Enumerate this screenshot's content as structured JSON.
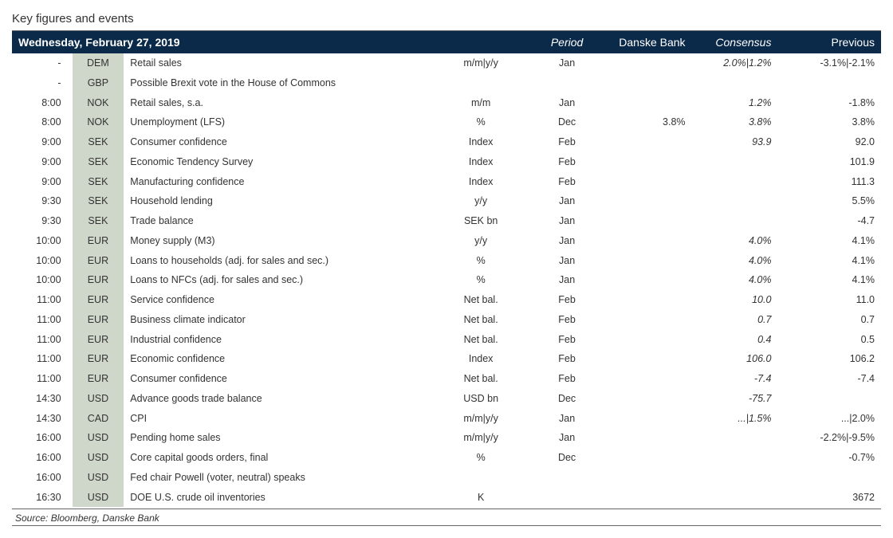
{
  "title": "Key figures and events",
  "date_header": "Wednesday, February 27, 2019",
  "columns": {
    "unit": "",
    "period": "Period",
    "danske": "Danske Bank",
    "consensus": "Consensus",
    "previous": "Previous"
  },
  "colors": {
    "header_bg": "#0b2a4a",
    "header_fg": "#ffffff",
    "ccy_bg": "#cfd7cb",
    "border": "#666666",
    "text": "#333333"
  },
  "fonts": {
    "title_size": 15,
    "body_size": 12.5,
    "cell_line_height": 1.5
  },
  "col_widths": {
    "time": 70,
    "ccy": 60,
    "event": 360,
    "unit": 110,
    "period": 90,
    "db": 100,
    "consensus": 100,
    "prev": 120
  },
  "rows": [
    {
      "time": "-",
      "ccy": "DEM",
      "event": "Retail sales",
      "unit": "m/m|y/y",
      "period": "Jan",
      "db": "",
      "cons": "2.0%|1.2%",
      "prev": "-3.1%|-2.1%"
    },
    {
      "time": "-",
      "ccy": "GBP",
      "event": "Possible Brexit vote in the House of Commons",
      "unit": "",
      "period": "",
      "db": "",
      "cons": "",
      "prev": ""
    },
    {
      "time": "8:00",
      "ccy": "NOK",
      "event": "Retail sales, s.a.",
      "unit": "m/m",
      "period": "Jan",
      "db": "",
      "cons": "1.2%",
      "prev": "-1.8%"
    },
    {
      "time": "8:00",
      "ccy": "NOK",
      "event": "Unemployment (LFS)",
      "unit": "%",
      "period": "Dec",
      "db": "3.8%",
      "cons": "3.8%",
      "prev": "3.8%"
    },
    {
      "time": "9:00",
      "ccy": "SEK",
      "event": "Consumer confidence",
      "unit": "Index",
      "period": "Feb",
      "db": "",
      "cons": "93.9",
      "prev": "92.0"
    },
    {
      "time": "9:00",
      "ccy": "SEK",
      "event": "Economic Tendency Survey",
      "unit": "Index",
      "period": "Feb",
      "db": "",
      "cons": "",
      "prev": "101.9"
    },
    {
      "time": "9:00",
      "ccy": "SEK",
      "event": "Manufacturing confidence",
      "unit": "Index",
      "period": "Feb",
      "db": "",
      "cons": "",
      "prev": "111.3"
    },
    {
      "time": "9:30",
      "ccy": "SEK",
      "event": "Household lending",
      "unit": "y/y",
      "period": "Jan",
      "db": "",
      "cons": "",
      "prev": "5.5%"
    },
    {
      "time": "9:30",
      "ccy": "SEK",
      "event": "Trade balance",
      "unit": "SEK bn",
      "period": "Jan",
      "db": "",
      "cons": "",
      "prev": "-4.7"
    },
    {
      "time": "10:00",
      "ccy": "EUR",
      "event": "Money supply (M3)",
      "unit": "y/y",
      "period": "Jan",
      "db": "",
      "cons": "4.0%",
      "prev": "4.1%"
    },
    {
      "time": "10:00",
      "ccy": "EUR",
      "event": "Loans to households (adj. for sales and sec.)",
      "unit": "%",
      "period": "Jan",
      "db": "",
      "cons": "4.0%",
      "prev": "4.1%"
    },
    {
      "time": "10:00",
      "ccy": "EUR",
      "event": "Loans to NFCs (adj. for sales and sec.)",
      "unit": "%",
      "period": "Jan",
      "db": "",
      "cons": "4.0%",
      "prev": "4.1%"
    },
    {
      "time": "11:00",
      "ccy": "EUR",
      "event": "Service confidence",
      "unit": "Net bal.",
      "period": "Feb",
      "db": "",
      "cons": "10.0",
      "prev": "11.0"
    },
    {
      "time": "11:00",
      "ccy": "EUR",
      "event": "Business climate indicator",
      "unit": "Net bal.",
      "period": "Feb",
      "db": "",
      "cons": "0.7",
      "prev": "0.7"
    },
    {
      "time": "11:00",
      "ccy": "EUR",
      "event": "Industrial confidence",
      "unit": "Net bal.",
      "period": "Feb",
      "db": "",
      "cons": "0.4",
      "prev": "0.5"
    },
    {
      "time": "11:00",
      "ccy": "EUR",
      "event": "Economic confidence",
      "unit": "Index",
      "period": "Feb",
      "db": "",
      "cons": "106.0",
      "prev": "106.2"
    },
    {
      "time": "11:00",
      "ccy": "EUR",
      "event": "Consumer confidence",
      "unit": "Net bal.",
      "period": "Feb",
      "db": "",
      "cons": "-7.4",
      "prev": "-7.4"
    },
    {
      "time": "14:30",
      "ccy": "USD",
      "event": "Advance goods trade balance",
      "unit": "USD bn",
      "period": "Dec",
      "db": "",
      "cons": "-75.7",
      "prev": ""
    },
    {
      "time": "14:30",
      "ccy": "CAD",
      "event": "CPI",
      "unit": "m/m|y/y",
      "period": "Jan",
      "db": "",
      "cons": "...|1.5%",
      "prev": "...|2.0%"
    },
    {
      "time": "16:00",
      "ccy": "USD",
      "event": "Pending home sales",
      "unit": "m/m|y/y",
      "period": "Jan",
      "db": "",
      "cons": "",
      "prev": "-2.2%|-9.5%"
    },
    {
      "time": "16:00",
      "ccy": "USD",
      "event": "Core capital goods orders, final",
      "unit": "%",
      "period": "Dec",
      "db": "",
      "cons": "",
      "prev": "-0.7%"
    },
    {
      "time": "16:00",
      "ccy": "USD",
      "event": "Fed chair Powell (voter, neutral) speaks",
      "unit": "",
      "period": "",
      "db": "",
      "cons": "",
      "prev": ""
    },
    {
      "time": "16:30",
      "ccy": "USD",
      "event": "DOE U.S. crude oil inventories",
      "unit": "K",
      "period": "",
      "db": "",
      "cons": "",
      "prev": "3672"
    }
  ],
  "source": "Source: Bloomberg, Danske Bank"
}
